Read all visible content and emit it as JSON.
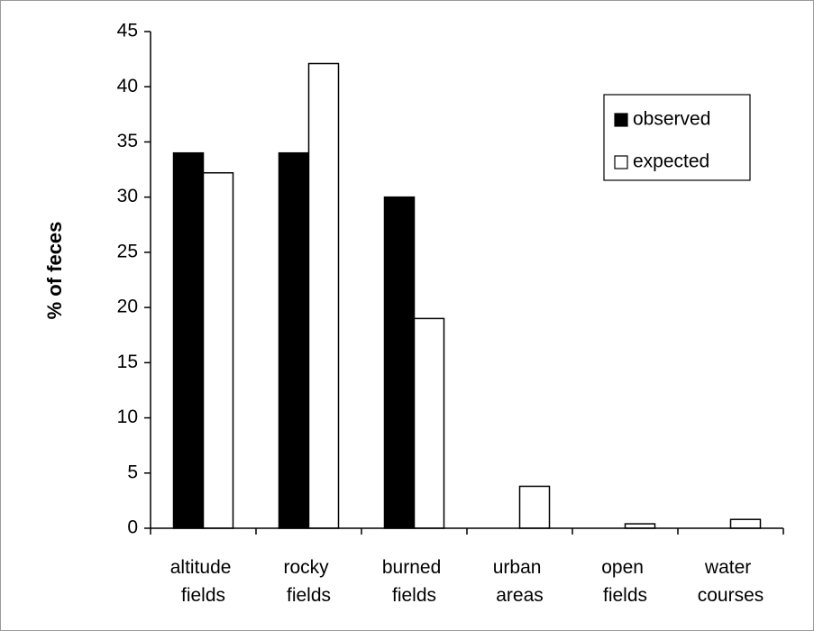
{
  "chart_data": {
    "type": "bar",
    "y_label": "% of feces",
    "categories": [
      "altitude fields",
      "rocky fields",
      "burned fields",
      "urban areas",
      "open fields",
      "water courses"
    ],
    "series": [
      {
        "name": "observed",
        "color": "#000000",
        "values": [
          34,
          34,
          30,
          0,
          0,
          0
        ]
      },
      {
        "name": "expected",
        "color": "#ffffff",
        "values": [
          32.2,
          42.1,
          19,
          3.8,
          0.4,
          0.8
        ]
      }
    ],
    "ylim": [
      0,
      45
    ],
    "yticks": [
      0,
      5,
      10,
      15,
      20,
      25,
      30,
      35,
      40,
      45
    ],
    "grid": false,
    "legend": "top-right"
  }
}
